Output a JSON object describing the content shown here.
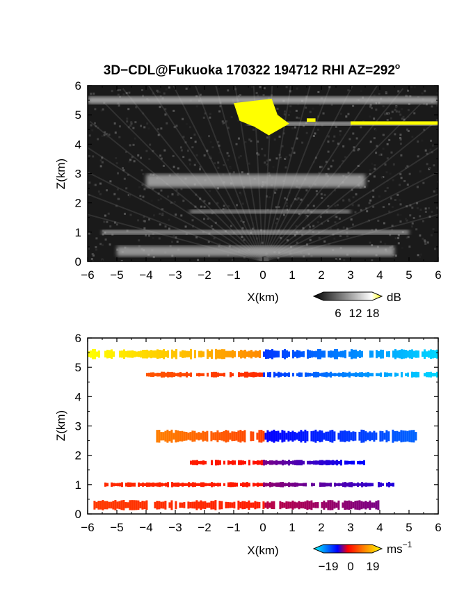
{
  "figure": {
    "title": "3D−CDL@Fukuoka 170322 194712 RHI AZ=292",
    "title_sup": "o"
  },
  "chart_data": [
    {
      "type": "heatmap",
      "panel": "backscatter",
      "xlabel": "X(km)",
      "ylabel": "Z(km)",
      "xlim": [
        -6,
        6
      ],
      "ylim": [
        0,
        6
      ],
      "xticks": [
        "−6",
        "−5",
        "−4",
        "−3",
        "−2",
        "−1",
        "0",
        "1",
        "2",
        "3",
        "4",
        "5",
        "6"
      ],
      "yticks": [
        "0",
        "1",
        "2",
        "3",
        "4",
        "5",
        "6"
      ],
      "colorbar": {
        "unit": "dB",
        "ticks": [
          "6",
          "12",
          "18"
        ],
        "range": [
          0,
          21
        ],
        "colors": [
          "#000000",
          "#ffffff",
          "#ffff00"
        ]
      },
      "layers": [
        {
          "z": 5.5,
          "x": [
            -6,
            6
          ],
          "thickness": 0.25,
          "value": 12
        },
        {
          "z": 4.7,
          "x": [
            -0.5,
            6
          ],
          "thickness": 0.12,
          "value": 18
        },
        {
          "z": 2.75,
          "x": [
            -4,
            3.5
          ],
          "thickness": 0.45,
          "value": 10
        },
        {
          "z": 1.7,
          "x": [
            -2.5,
            3
          ],
          "thickness": 0.12,
          "value": 11
        },
        {
          "z": 1.0,
          "x": [
            -5.5,
            5
          ],
          "thickness": 0.15,
          "value": 11
        },
        {
          "z": 0.35,
          "x": [
            -5,
            4.5
          ],
          "thickness": 0.35,
          "value": 9
        }
      ]
    },
    {
      "type": "heatmap",
      "panel": "doppler_velocity",
      "xlabel": "X(km)",
      "ylabel": "Z(km)",
      "xlim": [
        -6,
        6
      ],
      "ylim": [
        0,
        6
      ],
      "xticks": [
        "−6",
        "−5",
        "−4",
        "−3",
        "−2",
        "−1",
        "0",
        "1",
        "2",
        "3",
        "4",
        "5",
        "6"
      ],
      "yticks": [
        "0",
        "1",
        "2",
        "3",
        "4",
        "5",
        "6"
      ],
      "colorbar": {
        "unit": "ms",
        "unit_sup": "−1",
        "ticks": [
          "−19",
          "0",
          "19"
        ],
        "range": [
          -19,
          19
        ],
        "colors": [
          "#00ffff",
          "#0000ff",
          "#ff0000",
          "#ffff00"
        ]
      },
      "layers": [
        {
          "z": 5.45,
          "x": [
            -6,
            6
          ],
          "thickness": 0.35,
          "v_left": 19,
          "v_right": -17
        },
        {
          "z": 4.75,
          "x": [
            -4,
            6
          ],
          "thickness": 0.2,
          "v_left": 6,
          "v_right": -17
        },
        {
          "z": 2.65,
          "x": [
            -3.8,
            5.3
          ],
          "thickness": 0.45,
          "v_left": 9,
          "v_right": -11
        },
        {
          "z": 1.75,
          "x": [
            -2.5,
            3.5
          ],
          "thickness": 0.2,
          "v_left": 2,
          "v_right": -6
        },
        {
          "z": 1.0,
          "x": [
            -5.5,
            4.5
          ],
          "thickness": 0.18,
          "v_left": 3,
          "v_right": -5
        },
        {
          "z": 0.3,
          "x": [
            -5.8,
            4.0
          ],
          "thickness": 0.35,
          "v_left": 4,
          "v_right": -3
        }
      ]
    }
  ]
}
